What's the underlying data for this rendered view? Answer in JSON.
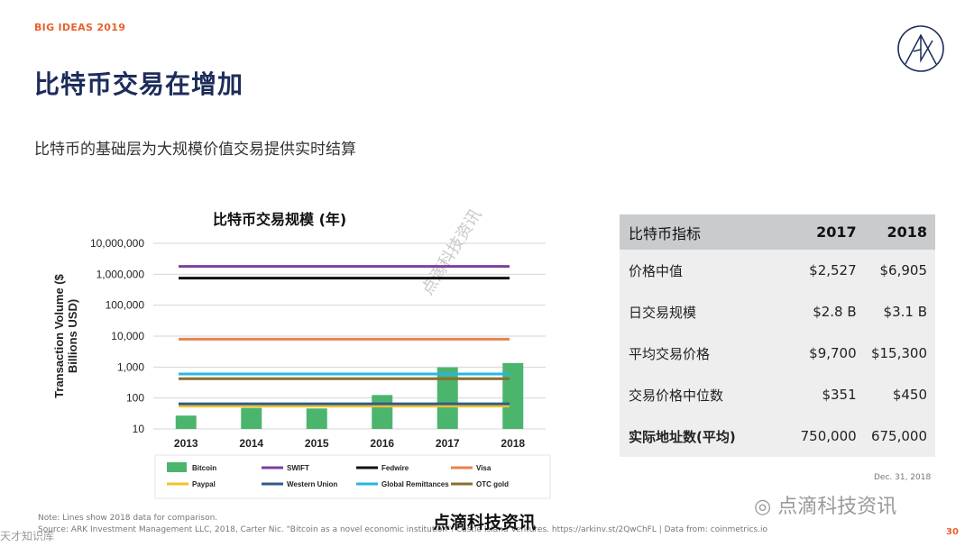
{
  "header": {
    "deck_label": "BIG IDEAS 2019",
    "page_number": "30"
  },
  "title": "比特币交易在增加",
  "subtitle": "比特币的基础层为大规模价值交易提供实时结算",
  "chart_data": {
    "type": "bar",
    "title": "比特币交易规模 (年)",
    "ylabel": "Transaction Volume ($ Billions USD)",
    "xlabel": "",
    "yscale": "log",
    "ylim": [
      10,
      10000000
    ],
    "yticks": [
      "10,000,000",
      "1,000,000",
      "100,000",
      "10,000",
      "1,000",
      "100",
      "10"
    ],
    "categories": [
      "2013",
      "2014",
      "2015",
      "2016",
      "2017",
      "2018"
    ],
    "series": [
      {
        "name": "Bitcoin",
        "type": "bar",
        "color": "#4bb56e",
        "values": [
          27,
          48,
          46,
          125,
          980,
          1350
        ]
      }
    ],
    "reference_lines": [
      {
        "name": "SWIFT",
        "value": 1800000,
        "color": "#7b3fa0"
      },
      {
        "name": "Fedwire",
        "value": 750000,
        "color": "#111111"
      },
      {
        "name": "Visa",
        "value": 8000,
        "color": "#e8834a"
      },
      {
        "name": "Paypal",
        "value": 55,
        "color": "#f2c12e"
      },
      {
        "name": "Western Union",
        "value": 65,
        "color": "#2e5b8c"
      },
      {
        "name": "Global Remittances",
        "value": 600,
        "color": "#27b6e3"
      },
      {
        "name": "OTC gold",
        "value": 420,
        "color": "#8c6d2c"
      }
    ],
    "grid": true,
    "legend_position": "bottom"
  },
  "table": {
    "headers": [
      "比特币指标",
      "2017",
      "2018"
    ],
    "rows": [
      [
        "价格中值",
        "$2,527",
        "$6,905"
      ],
      [
        "日交易规模",
        "$2.8 B",
        "$3.1 B"
      ],
      [
        "平均交易价格",
        "$9,700",
        "$15,300"
      ],
      [
        "交易价格中位数",
        "$351",
        "$450"
      ],
      [
        "实际地址数(平均)",
        "750,000",
        "675,000"
      ]
    ],
    "date": "Dec. 31, 2018"
  },
  "notes": {
    "note": "Note: Lines show 2018 data for comparison.",
    "source": "Source: ARK Investment Management LLC, 2018, Carter Nic. \"Bitcoin as a novel economic institution\". Castle Island Ventures. https://arkinv.st/2QwChFL | Data from: coinmetrics.io"
  },
  "watermarks": {
    "credit": "点滴科技资讯",
    "wechat": "点滴科技资讯",
    "diagonal": "点滴科技资讯",
    "corner": "天才知识库"
  },
  "colors": {
    "accent": "#e8622c",
    "title": "#1d2c5a"
  }
}
